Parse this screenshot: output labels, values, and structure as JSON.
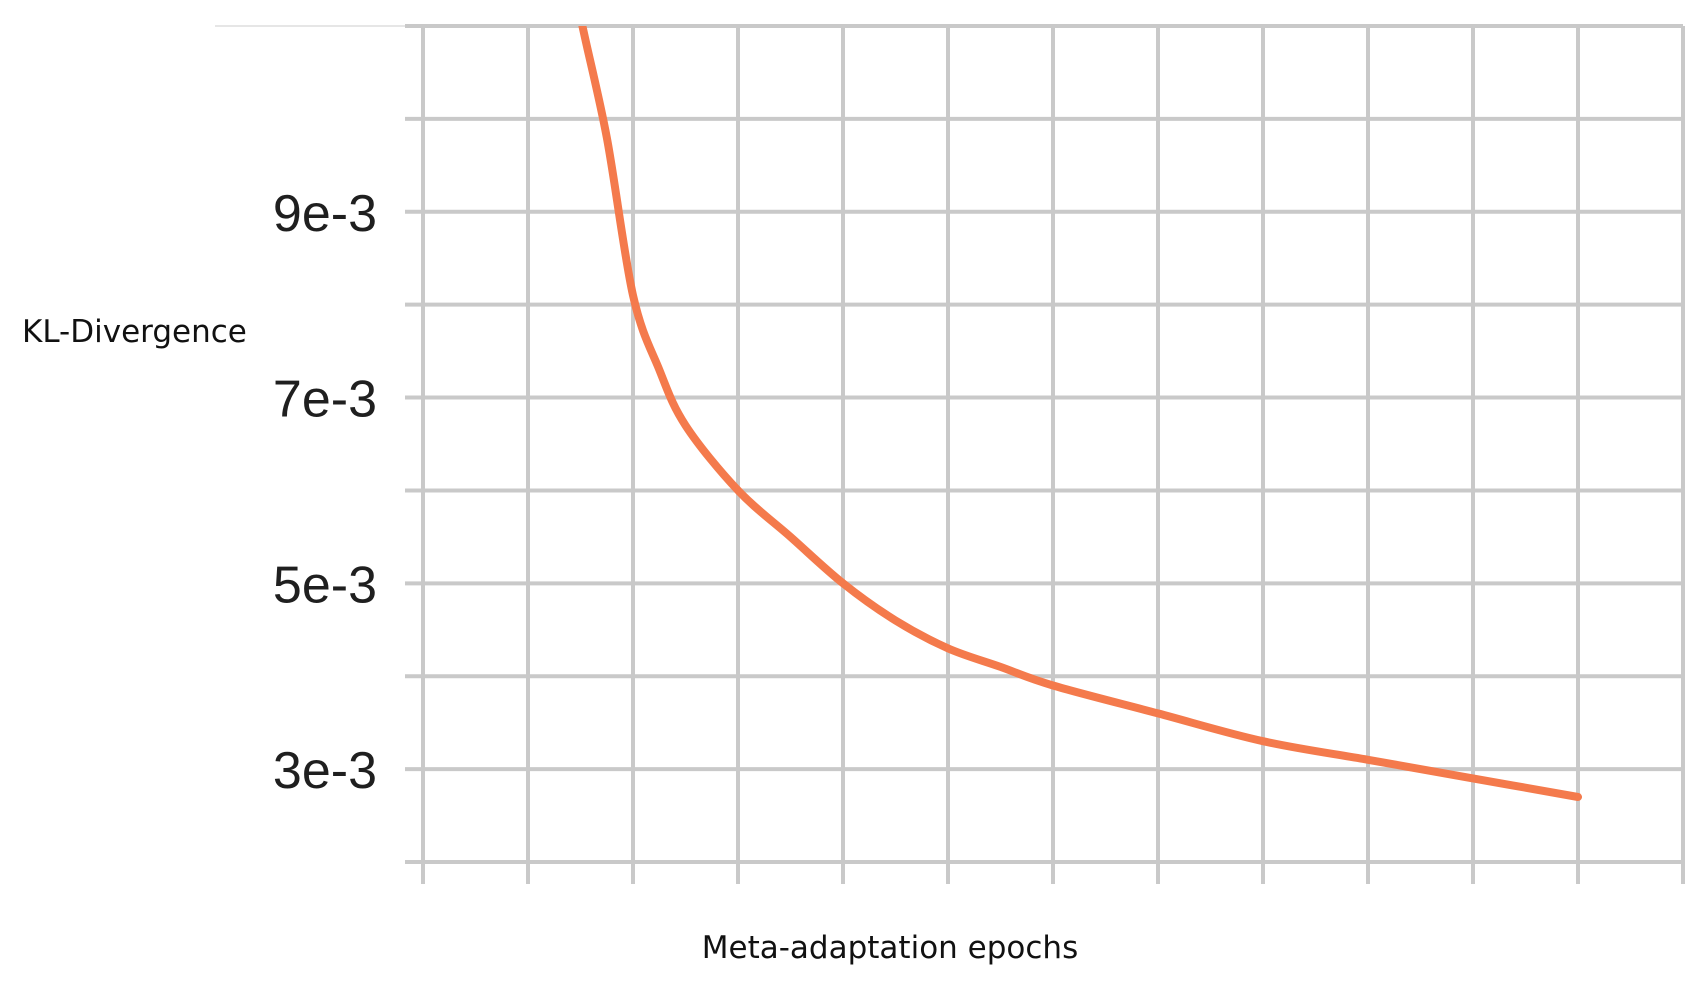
{
  "chart_data": {
    "type": "line",
    "xlabel": "Meta-adaptation epochs",
    "ylabel": "KL-Divergence",
    "ylim": [
      0.002,
      0.011
    ],
    "xlim": [
      0,
      12
    ],
    "y_ticks": [
      {
        "value": 0.003,
        "label": "3e-3"
      },
      {
        "value": 0.005,
        "label": "5e-3"
      },
      {
        "value": 0.007,
        "label": "7e-3"
      },
      {
        "value": 0.009,
        "label": "9e-3"
      }
    ],
    "grid": true,
    "series": [
      {
        "color": "#f47a4c",
        "x": [
          1.4,
          1.5,
          1.75,
          2.0,
          2.25,
          2.5,
          3.0,
          3.5,
          4.0,
          4.5,
          5.0,
          5.5,
          6.0,
          7.0,
          8.0,
          9.0,
          10.0,
          11.0
        ],
        "y": [
          0.0118,
          0.0111,
          0.0098,
          0.0081,
          0.0073,
          0.0067,
          0.006,
          0.0055,
          0.005,
          0.0046,
          0.0043,
          0.0041,
          0.0039,
          0.0036,
          0.0033,
          0.0031,
          0.0029,
          0.0027
        ]
      }
    ]
  }
}
